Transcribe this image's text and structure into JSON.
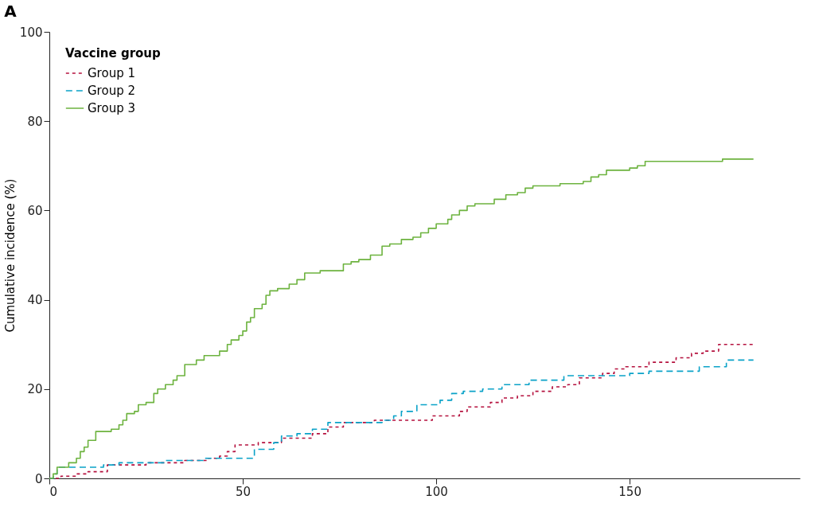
{
  "chart_data": {
    "type": "step",
    "title": "A",
    "ylabel": "Cumulative incidence (%)",
    "legend_title": "Vaccine group",
    "legend": "top left",
    "grid": false,
    "marker": "none",
    "xlim": [
      0,
      194
    ],
    "xticks": [
      0,
      50,
      100,
      150
    ],
    "ylim": [
      0,
      100
    ],
    "yticks": [
      0,
      20,
      40,
      60,
      80,
      100
    ],
    "series": [
      {
        "name": "Group 1",
        "color": "#b5113e",
        "line_style": "dotted",
        "x": [
          0,
          3,
          7,
          10,
          15,
          25,
          35,
          41,
          44,
          46,
          48,
          54,
          60,
          68,
          72,
          76,
          84,
          99,
          106,
          108,
          114,
          117,
          121,
          125,
          130,
          134,
          137,
          143,
          146,
          149,
          155,
          162,
          166,
          169,
          173,
          182
        ],
        "values": [
          0,
          0.5,
          1,
          1.5,
          3,
          3.5,
          4,
          4.5,
          5,
          6,
          7.5,
          8,
          9,
          10,
          11.5,
          12.5,
          13,
          14,
          15,
          16,
          17,
          18,
          18.5,
          19.5,
          20.5,
          21,
          22.5,
          23.5,
          24.5,
          25,
          26,
          27,
          28,
          28.5,
          30,
          30
        ]
      },
      {
        "name": "Group 2",
        "color": "#0aa2c8",
        "line_style": "dashed",
        "x": [
          0,
          1,
          2,
          14,
          18,
          30,
          40,
          53,
          58,
          60,
          64,
          68,
          72,
          86,
          89,
          91,
          95,
          101,
          104,
          107,
          112,
          117,
          124,
          133,
          150,
          155,
          168,
          175,
          182
        ],
        "values": [
          0,
          1,
          2.5,
          3,
          3.5,
          4,
          4.5,
          6.5,
          8,
          9.5,
          10,
          11,
          12.5,
          13,
          14,
          15,
          16.5,
          17.5,
          19,
          19.5,
          20,
          21,
          22,
          23,
          23.5,
          24,
          25,
          26.5,
          26.5
        ]
      },
      {
        "name": "Group 3",
        "color": "#6db33f",
        "line_style": "solid",
        "x": [
          0,
          1,
          2,
          5,
          7,
          8,
          9,
          10,
          12,
          16,
          18,
          19,
          20,
          22,
          23,
          25,
          27,
          28,
          30,
          32,
          33,
          35,
          38,
          40,
          44,
          46,
          47,
          49,
          50,
          51,
          52,
          53,
          55,
          56,
          57,
          59,
          62,
          64,
          66,
          70,
          76,
          78,
          80,
          83,
          86,
          88,
          91,
          94,
          96,
          98,
          100,
          103,
          104,
          106,
          108,
          110,
          115,
          118,
          121,
          123,
          125,
          132,
          138,
          140,
          142,
          144,
          150,
          152,
          154,
          174,
          182
        ],
        "values": [
          0,
          1,
          2.5,
          3.5,
          4.5,
          6,
          7,
          8.5,
          10.5,
          11,
          12,
          13,
          14.5,
          15,
          16.5,
          17,
          19,
          20,
          21,
          22,
          23,
          25.5,
          26.5,
          27.5,
          28.5,
          30,
          31,
          32,
          33,
          35,
          36,
          38,
          39,
          41,
          42,
          42.5,
          43.5,
          44.5,
          46,
          46.5,
          48,
          48.5,
          49,
          50,
          52,
          52.5,
          53.5,
          54,
          55,
          56,
          57,
          58,
          59,
          60,
          61,
          61.5,
          62.5,
          63.5,
          64,
          65,
          65.5,
          66,
          66.5,
          67.5,
          68,
          69,
          69.5,
          70,
          71,
          71.5,
          71.5
        ]
      }
    ]
  }
}
